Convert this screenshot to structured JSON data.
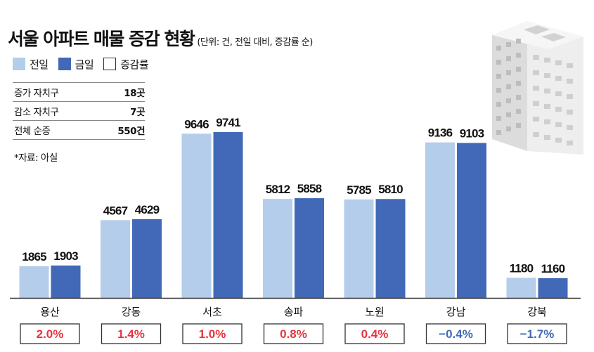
{
  "title": "서울 아파트 매물 증감 현황",
  "subtitle": "(단위: 건, 전일 대비, 증감률 순)",
  "legend": {
    "prev": "전일",
    "curr": "금일",
    "rate": "증감률"
  },
  "summary": [
    {
      "label": "증가 자치구",
      "value": "18곳"
    },
    {
      "label": "감소 자치구",
      "value": "7곳"
    },
    {
      "label": "전체 순증",
      "value": "550건"
    }
  ],
  "source": "*자료: 아실",
  "colors": {
    "prev": "#b4cdea",
    "curr": "#4169b8",
    "positive": "#e8343d",
    "negative": "#3f6cb6",
    "axis": "#333333"
  },
  "chart_data": {
    "type": "bar",
    "title": "서울 아파트 매물 증감 현황",
    "unit": "건",
    "categories": [
      "용산",
      "강동",
      "서초",
      "송파",
      "노원",
      "강남",
      "강북"
    ],
    "series": [
      {
        "name": "전일",
        "values": [
          1865,
          4567,
          9646,
          5812,
          5785,
          9136,
          1180
        ]
      },
      {
        "name": "금일",
        "values": [
          1903,
          4629,
          9741,
          5858,
          5810,
          9103,
          1160
        ]
      }
    ],
    "change_rate_labels": [
      "2.0%",
      "1.4%",
      "1.0%",
      "0.8%",
      "0.4%",
      "−0.4%",
      "−1.7%"
    ],
    "change_rate_values": [
      2.0,
      1.4,
      1.0,
      0.8,
      0.4,
      -0.4,
      -1.7
    ],
    "ylim": [
      0,
      10000
    ]
  }
}
